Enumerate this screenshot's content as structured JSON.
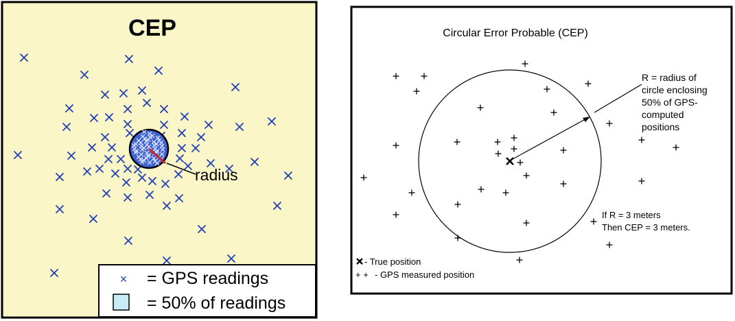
{
  "left_panel": {
    "title": "CEP",
    "radius_label": "radius",
    "legend": {
      "readings_symbol": "×",
      "readings_label": "= GPS readings",
      "half_label": "= 50% of readings"
    },
    "colors": {
      "background": "#fbf6c8",
      "marker": "#1f3fb5",
      "circle_fill": "#3f63d6",
      "radius_line": "#d42020",
      "legend_swatch": "#c7ecf6"
    }
  },
  "right_panel": {
    "title": "Circular Error Probable (CEP)",
    "radius_note": [
      "R = radius of",
      "circle enclosing",
      "50% of GPS-",
      "computed",
      "positions"
    ],
    "example_note": [
      "If R = 3 meters",
      "Then CEP = 3 meters."
    ],
    "legend": {
      "true_label": "- True position",
      "measured_symbol": "+ +",
      "measured_label": "- GPS measured position"
    }
  }
}
